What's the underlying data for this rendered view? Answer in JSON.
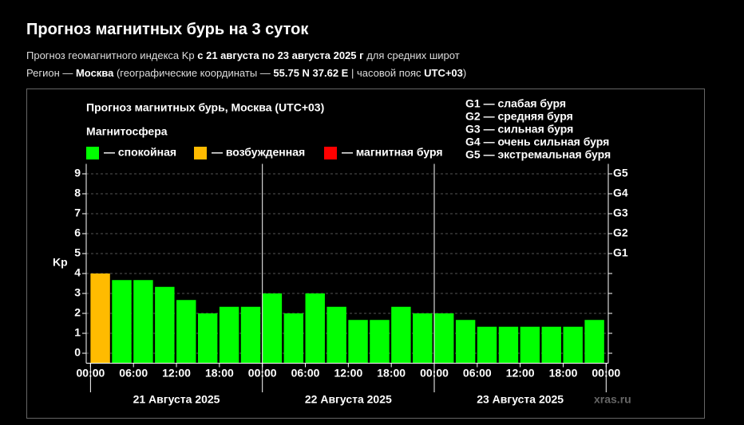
{
  "header": {
    "title": "Прогноз магнитных бурь на 3 суток",
    "line1": [
      {
        "text": "Прогноз геомагнитного индекса Kp ",
        "bold": false
      },
      {
        "text": "с 21 августа по 23 августа 2025 г",
        "bold": true
      },
      {
        "text": " для средних широт",
        "bold": false
      }
    ],
    "line2": [
      {
        "text": "Регион — ",
        "bold": false
      },
      {
        "text": "Москва",
        "bold": true
      },
      {
        "text": " (географические координаты — ",
        "bold": false
      },
      {
        "text": "55.75 N 37.62 E",
        "bold": true
      },
      {
        "text": " | часовой пояс ",
        "bold": false
      },
      {
        "text": "UTC+03",
        "bold": true
      },
      {
        "text": ")",
        "bold": false
      }
    ]
  },
  "chart_data": {
    "type": "bar",
    "title": "Прогноз магнитных бурь, Москва (UTC+03)",
    "y_label": "Kp",
    "legend_title": "Магнитосфера",
    "legend": [
      {
        "name": "— спокойная",
        "color": "#00ff00"
      },
      {
        "name": "— возбужденная",
        "color": "#ffbb00"
      },
      {
        "name": "— магнитная буря",
        "color": "#ff0000"
      }
    ],
    "g_scale": [
      "G1 — слабая буря",
      "G2 — средняя буря",
      "G3 — сильная буря",
      "G4 — очень сильная буря",
      "G5 — экстремальная буря"
    ],
    "x": [
      0,
      3,
      6,
      9,
      12,
      15,
      18,
      21,
      24,
      27,
      30,
      33,
      36,
      39,
      42,
      45,
      48,
      51,
      54,
      57,
      60,
      63,
      66,
      69
    ],
    "bar_width": 3,
    "values": [
      4,
      3.67,
      3.67,
      3.33,
      2.67,
      2,
      2.33,
      2.33,
      3,
      2,
      3,
      2.33,
      1.67,
      1.67,
      2.33,
      2,
      2,
      1.67,
      1.33,
      1.33,
      1.33,
      1.33,
      1.33,
      1.67
    ],
    "colors": [
      "#ffbb00",
      "#00ff00",
      "#00ff00",
      "#00ff00",
      "#00ff00",
      "#00ff00",
      "#00ff00",
      "#00ff00",
      "#00ff00",
      "#00ff00",
      "#00ff00",
      "#00ff00",
      "#00ff00",
      "#00ff00",
      "#00ff00",
      "#00ff00",
      "#00ff00",
      "#00ff00",
      "#00ff00",
      "#00ff00",
      "#00ff00",
      "#00ff00",
      "#00ff00",
      "#00ff00"
    ],
    "xlim": [
      -0.6,
      72.3
    ],
    "xticks": [
      {
        "value": 0,
        "label": "00:00"
      },
      {
        "value": 6,
        "label": "06:00"
      },
      {
        "value": 12,
        "label": "12:00"
      },
      {
        "value": 18,
        "label": "18:00"
      },
      {
        "value": 24,
        "label": "00:00"
      },
      {
        "value": 30,
        "label": "06:00"
      },
      {
        "value": 36,
        "label": "12:00"
      },
      {
        "value": 42,
        "label": "18:00"
      },
      {
        "value": 48,
        "label": "00:00"
      },
      {
        "value": 54,
        "label": "06:00"
      },
      {
        "value": 60,
        "label": "12:00"
      },
      {
        "value": 66,
        "label": "18:00"
      },
      {
        "value": 72,
        "label": "00:00"
      }
    ],
    "days": [
      "21 Августа 2025",
      "22 Августа 2025",
      "23 Августа 2025"
    ],
    "ylim": [
      -0.5,
      9.5
    ],
    "yticks": [
      0,
      1,
      2,
      3,
      4,
      5,
      6,
      7,
      8,
      9
    ],
    "y2ticks": [
      {
        "value": 5,
        "label": "G1"
      },
      {
        "value": 6,
        "label": "G2"
      },
      {
        "value": 7,
        "label": "G3"
      },
      {
        "value": 8,
        "label": "G4"
      },
      {
        "value": 9,
        "label": "G5"
      }
    ],
    "grid": true,
    "watermark": "xras.ru"
  }
}
